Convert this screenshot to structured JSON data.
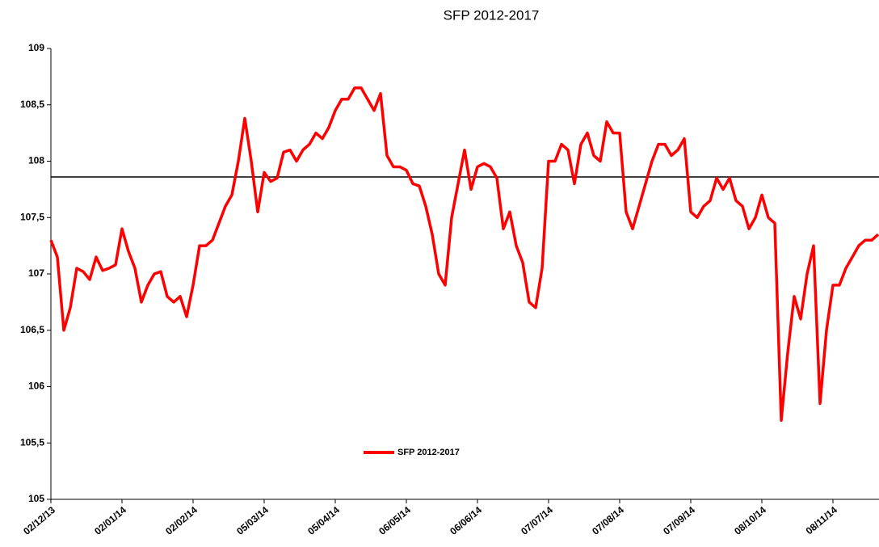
{
  "chart_data": {
    "type": "line",
    "title": "SFP 2012-2017",
    "categories": [
      "02/12/13",
      null,
      null,
      null,
      null,
      null,
      null,
      null,
      null,
      null,
      null,
      "02/01/14",
      null,
      null,
      null,
      null,
      null,
      null,
      null,
      null,
      null,
      null,
      "02/02/14",
      null,
      null,
      null,
      null,
      null,
      null,
      null,
      null,
      null,
      null,
      "05/03/14",
      null,
      null,
      null,
      null,
      null,
      null,
      null,
      null,
      null,
      null,
      "05/04/14",
      null,
      null,
      null,
      null,
      null,
      null,
      null,
      null,
      null,
      null,
      "06/05/14",
      null,
      null,
      null,
      null,
      null,
      null,
      null,
      null,
      null,
      null,
      "06/06/14",
      null,
      null,
      null,
      null,
      null,
      null,
      null,
      null,
      null,
      null,
      "07/07/14",
      null,
      null,
      null,
      null,
      null,
      null,
      null,
      null,
      null,
      null,
      "07/08/14",
      null,
      null,
      null,
      null,
      null,
      null,
      null,
      null,
      null,
      null,
      "07/09/14",
      null,
      null,
      null,
      null,
      null,
      null,
      null,
      null,
      null,
      null,
      "08/10/14",
      null,
      null,
      null,
      null,
      null,
      null,
      null,
      null,
      null,
      null,
      "08/11/14",
      null,
      null,
      null,
      null,
      null,
      null,
      null
    ],
    "series": [
      {
        "name": "SFP 2012-2017",
        "color": "#ff0000",
        "values": [
          107.3,
          107.15,
          106.5,
          106.7,
          107.05,
          107.02,
          106.95,
          107.15,
          107.03,
          107.05,
          107.08,
          107.4,
          107.2,
          107.05,
          106.75,
          106.9,
          107.0,
          107.02,
          106.8,
          106.75,
          106.8,
          106.62,
          106.9,
          107.25,
          107.25,
          107.3,
          107.45,
          107.6,
          107.7,
          108.0,
          108.38,
          108.0,
          107.55,
          107.9,
          107.82,
          107.85,
          108.08,
          108.1,
          108.0,
          108.1,
          108.15,
          108.25,
          108.2,
          108.3,
          108.45,
          108.55,
          108.55,
          108.65,
          108.65,
          108.55,
          108.45,
          108.6,
          108.05,
          107.95,
          107.95,
          107.92,
          107.8,
          107.78,
          107.6,
          107.35,
          107.0,
          106.9,
          107.5,
          107.8,
          108.1,
          107.75,
          107.95,
          107.98,
          107.95,
          107.85,
          107.4,
          107.55,
          107.25,
          107.1,
          106.75,
          106.7,
          107.05,
          108.0,
          108.0,
          108.15,
          108.1,
          107.8,
          108.15,
          108.25,
          108.05,
          108.0,
          108.35,
          108.25,
          108.25,
          107.55,
          107.4,
          107.6,
          107.8,
          108.0,
          108.15,
          108.15,
          108.05,
          108.1,
          108.2,
          107.55,
          107.5,
          107.6,
          107.65,
          107.85,
          107.75,
          107.85,
          107.65,
          107.6,
          107.4,
          107.5,
          107.7,
          107.5,
          107.45,
          105.7,
          106.3,
          106.8,
          106.6,
          107.0,
          107.25,
          105.85,
          106.5,
          106.9,
          106.9,
          107.05,
          107.15,
          107.25,
          107.3,
          107.3,
          107.35
        ]
      }
    ],
    "reference_line": 107.86,
    "ylim": [
      105,
      109
    ],
    "yticks": [
      105,
      {
        "value": 105.5,
        "label": "105,5"
      },
      106,
      {
        "value": 106.5,
        "label": "106,5"
      },
      107,
      {
        "value": 107.5,
        "label": "107,5"
      },
      108,
      {
        "value": 108.5,
        "label": "108,5"
      },
      109
    ]
  }
}
